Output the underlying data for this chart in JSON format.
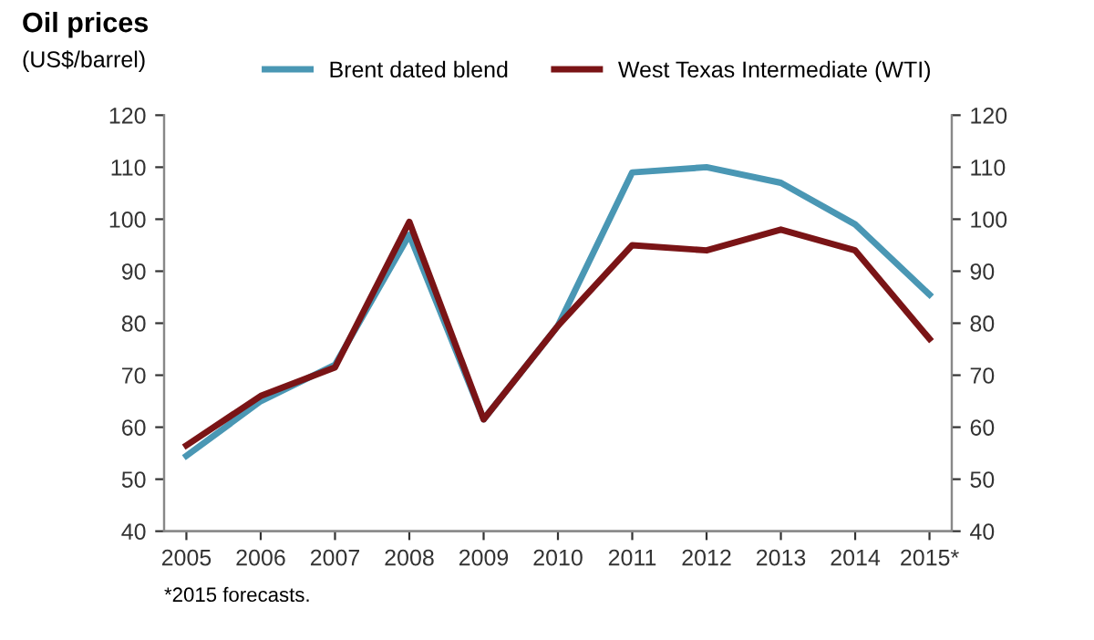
{
  "chart_data": {
    "type": "line",
    "title": "Oil prices",
    "subtitle": "(US$/barrel)",
    "categories": [
      "2005",
      "2006",
      "2007",
      "2008",
      "2009",
      "2010",
      "2011",
      "2012",
      "2013",
      "2014",
      "2015*"
    ],
    "series": [
      {
        "name": "Brent dated blend",
        "color": "#4a97b4",
        "values": [
          54.5,
          65,
          72,
          97,
          61.5,
          79.5,
          109,
          110,
          107,
          99,
          85.5
        ]
      },
      {
        "name": "West Texas Intermediate (WTI)",
        "color": "#7a1416",
        "values": [
          56.5,
          66,
          71.5,
          99.5,
          61.5,
          79.5,
          95,
          94,
          98,
          94,
          77
        ]
      }
    ],
    "ylim": [
      40,
      120
    ],
    "yticks": [
      40,
      50,
      60,
      70,
      80,
      90,
      100,
      110,
      120
    ],
    "y2lim": [
      40,
      120
    ],
    "y2ticks": [
      40,
      50,
      60,
      70,
      80,
      90,
      100,
      110,
      120
    ],
    "grid": false,
    "legend": "top right",
    "marker": "none",
    "line_style": "solid",
    "annotations": [
      "*2015 forecasts."
    ]
  }
}
